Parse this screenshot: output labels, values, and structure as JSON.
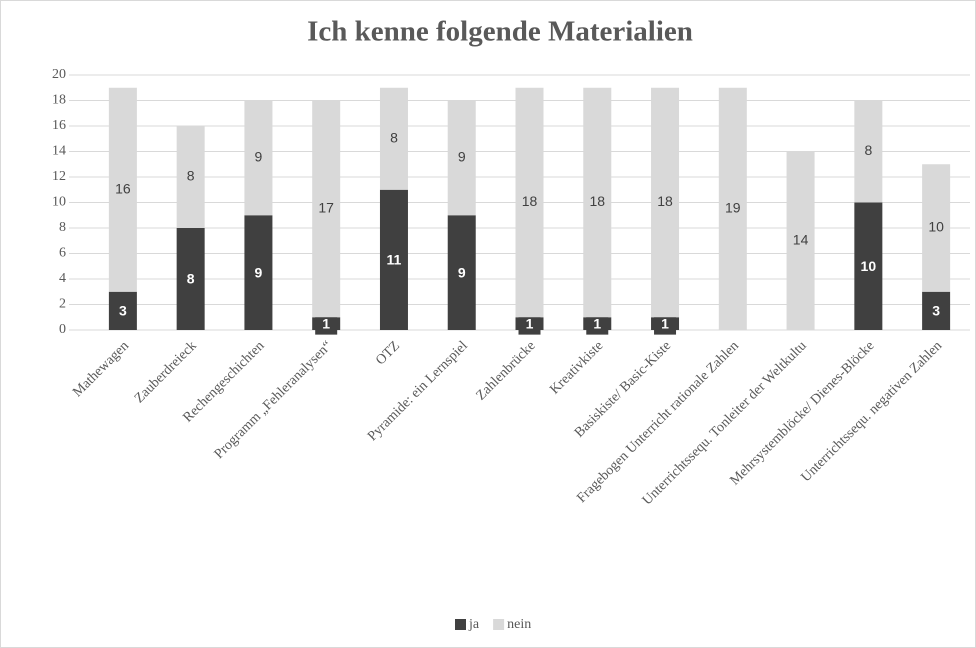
{
  "chart_data": {
    "type": "stacked_bar",
    "title": "Ich kenne folgende Materialien",
    "categories": [
      "Mathewagen",
      "Zauberdreieck",
      "Rechengeschichten",
      "Programm „Fehleranalysen“",
      "OTZ",
      "Pyramide: ein Lernspiel",
      "Zahlenbrücke",
      "Kreativkiste",
      "Basiskiste/ Basic-Kiste",
      "Fragebogen  Unterricht  rationale Zahlen",
      "Unterrichtssequ. Tonleiter der Weltkultu",
      "Mehrsystemblöcke/ Dienes-Blöcke",
      "Unterrichtssequ. negativen Zahlen"
    ],
    "series": [
      {
        "name": "ja",
        "color": "#404040",
        "values": [
          3,
          8,
          9,
          1,
          11,
          9,
          1,
          1,
          1,
          0,
          0,
          10,
          3
        ]
      },
      {
        "name": "nein",
        "color": "#d9d9d9",
        "values": [
          16,
          8,
          9,
          17,
          8,
          9,
          18,
          18,
          18,
          19,
          14,
          8,
          10
        ]
      }
    ],
    "ylim": [
      0,
      20
    ],
    "yticks": [
      0,
      2,
      4,
      6,
      8,
      10,
      12,
      14,
      16,
      18,
      20
    ],
    "grid": true,
    "legend": "bottom"
  }
}
